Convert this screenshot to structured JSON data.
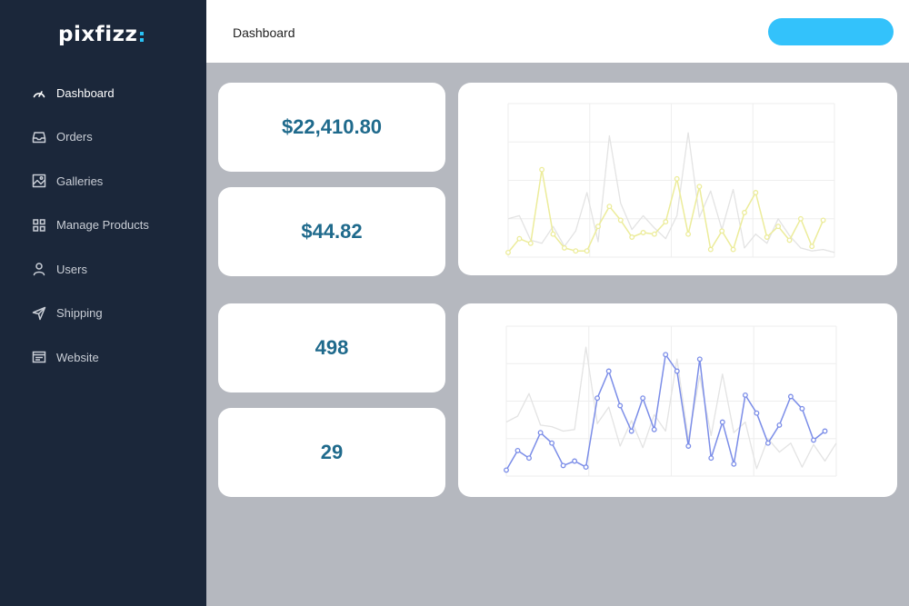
{
  "app": {
    "logo_text": "pixfizz",
    "accent_color": "#33c2fb",
    "sidebar_bg": "#1b273a",
    "value_color": "#1f6a8c"
  },
  "header": {
    "title": "Dashboard",
    "action_button_label": ""
  },
  "sidebar": {
    "items": [
      {
        "label": "Dashboard",
        "icon": "gauge-icon",
        "active": true
      },
      {
        "label": "Orders",
        "icon": "inbox-tray-icon",
        "active": false
      },
      {
        "label": "Galleries",
        "icon": "image-icon",
        "active": false
      },
      {
        "label": "Manage Products",
        "icon": "grid-icon",
        "active": false
      },
      {
        "label": "Users",
        "icon": "user-icon",
        "active": false
      },
      {
        "label": "Shipping",
        "icon": "send-icon",
        "active": false
      },
      {
        "label": "Website",
        "icon": "browser-window-icon",
        "active": false
      }
    ]
  },
  "stats": [
    {
      "value": "$22,410.80"
    },
    {
      "value": "$44.82"
    },
    {
      "value": "498"
    },
    {
      "value": "29"
    }
  ],
  "chart_data": [
    {
      "type": "line",
      "title": "",
      "xlabel": "",
      "ylabel": "",
      "grid": true,
      "x": [
        1,
        2,
        3,
        4,
        5,
        6,
        7,
        8,
        9,
        10,
        11,
        12,
        13,
        14,
        15,
        16,
        17,
        18,
        19,
        20,
        21,
        22,
        23,
        24,
        25,
        26,
        27,
        28,
        29,
        30
      ],
      "ylim": [
        0,
        100
      ],
      "series": [
        {
          "color": "#ecec9a",
          "markers": true,
          "values": [
            3,
            12,
            9,
            57,
            15,
            6,
            4,
            4,
            20,
            33,
            24,
            13,
            16,
            15,
            23,
            51,
            15,
            46,
            5,
            17,
            5,
            29,
            42,
            13,
            20,
            11,
            25,
            7,
            24,
            null
          ]
        },
        {
          "color": "#e3e3e3",
          "markers": false,
          "values": [
            25,
            27,
            11,
            9,
            20,
            7,
            17,
            42,
            10,
            79,
            35,
            18,
            27,
            19,
            12,
            27,
            81,
            26,
            43,
            18,
            44,
            6,
            15,
            9,
            25,
            14,
            6,
            4,
            5,
            3
          ]
        }
      ]
    },
    {
      "type": "line",
      "title": "",
      "xlabel": "",
      "ylabel": "",
      "grid": true,
      "x": [
        1,
        2,
        3,
        4,
        5,
        6,
        7,
        8,
        9,
        10,
        11,
        12,
        13,
        14,
        15,
        16,
        17,
        18,
        19,
        20,
        21,
        22,
        23,
        24,
        25,
        26,
        27,
        28,
        29,
        30
      ],
      "ylim": [
        0,
        100
      ],
      "series": [
        {
          "color": "#7b8de8",
          "markers": true,
          "values": [
            4,
            17,
            12,
            29,
            22,
            7,
            10,
            6,
            52,
            70,
            47,
            30,
            52,
            31,
            81,
            70,
            20,
            78,
            12,
            36,
            8,
            54,
            42,
            22,
            34,
            53,
            45,
            24,
            30,
            null
          ]
        },
        {
          "color": "#e3e3e3",
          "markers": false,
          "values": [
            36,
            40,
            55,
            34,
            33,
            30,
            31,
            86,
            35,
            46,
            20,
            37,
            19,
            41,
            30,
            78,
            24,
            67,
            27,
            68,
            29,
            36,
            5,
            25,
            16,
            22,
            6,
            21,
            10,
            22
          ]
        }
      ]
    }
  ]
}
